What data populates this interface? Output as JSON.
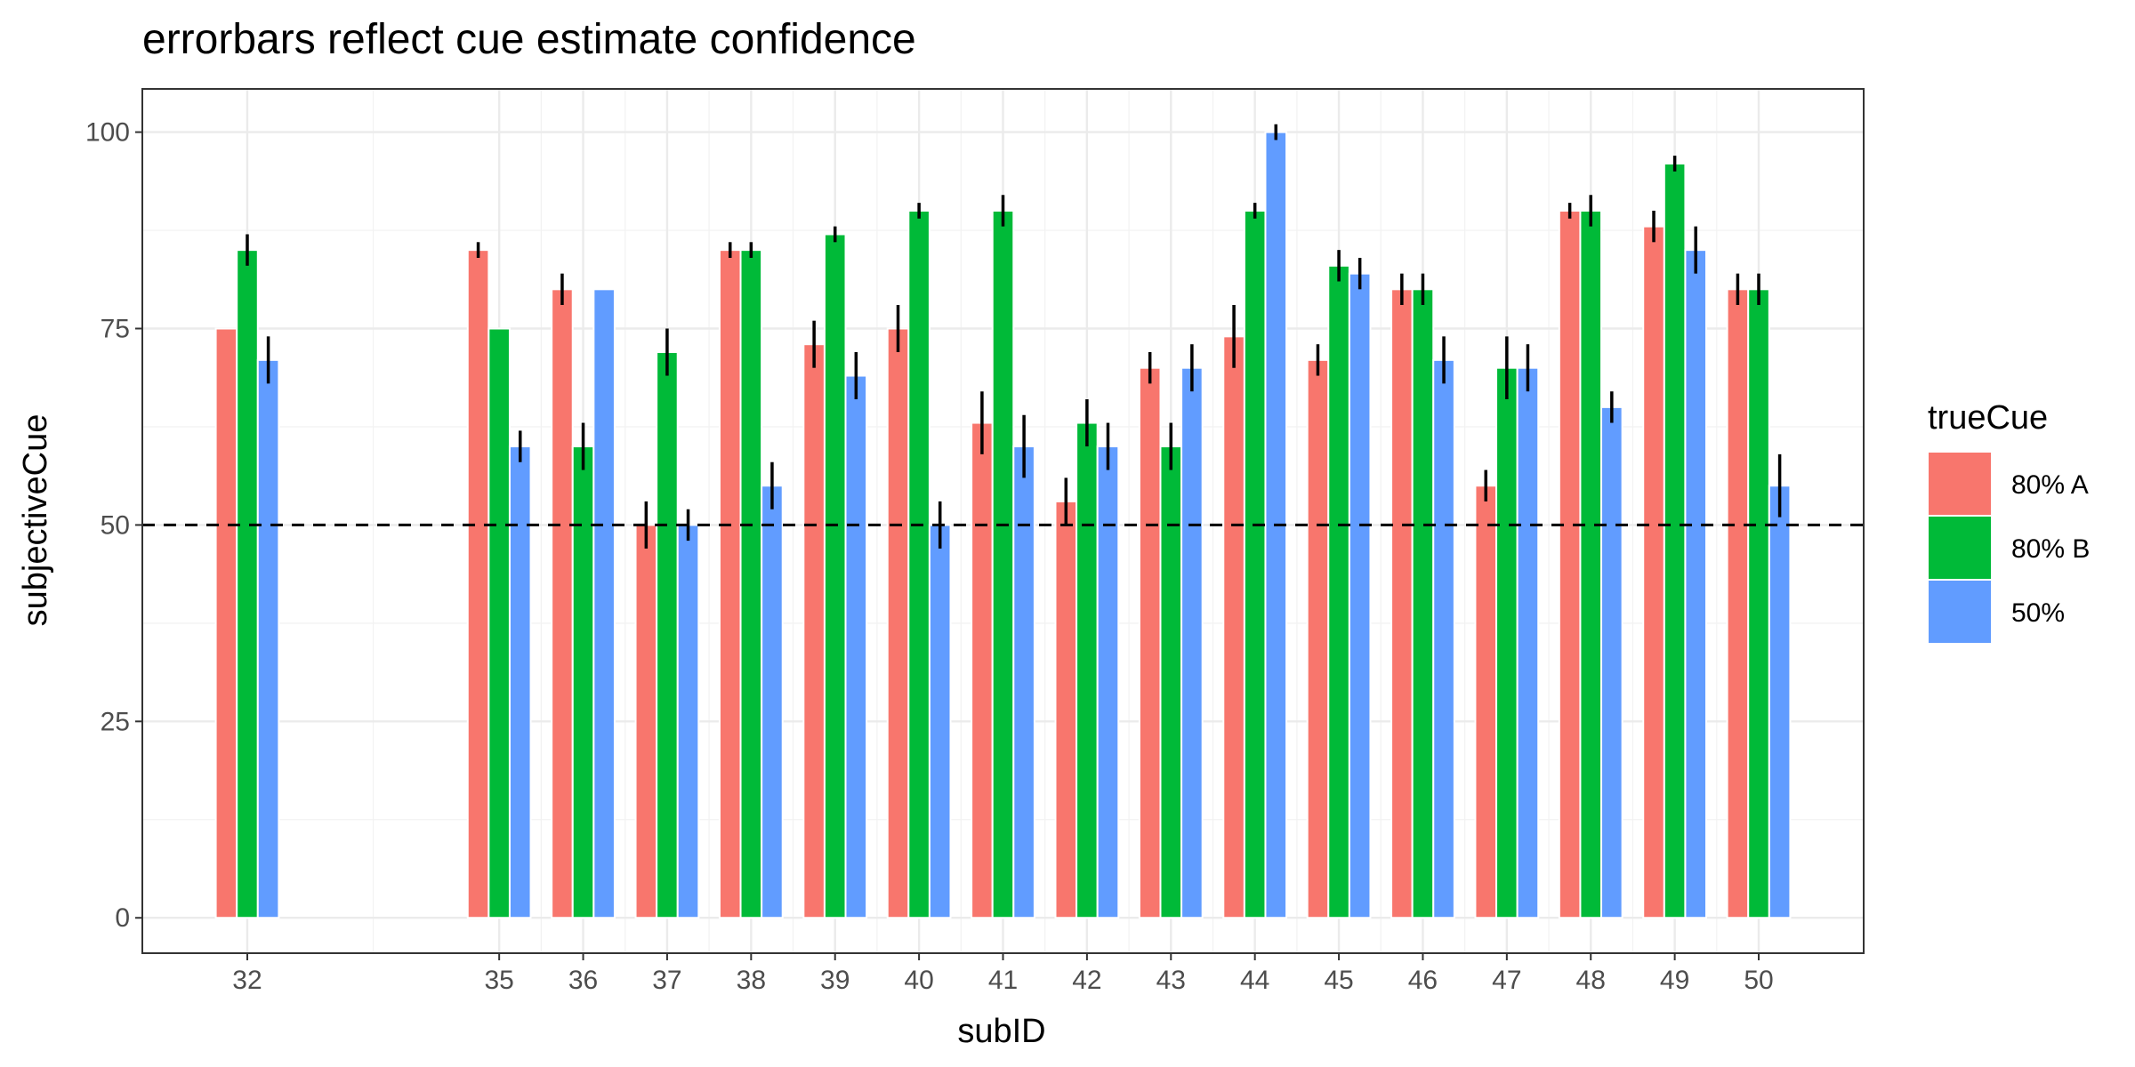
{
  "chart_data": {
    "type": "bar",
    "title": "errorbars reflect cue estimate confidence",
    "xlabel": "subID",
    "ylabel": "subjectiveCue",
    "categories": [
      "32",
      "35",
      "36",
      "37",
      "38",
      "39",
      "40",
      "41",
      "42",
      "43",
      "44",
      "45",
      "46",
      "47",
      "48",
      "49",
      "50"
    ],
    "x_positions": [
      32,
      35,
      36,
      37,
      38,
      39,
      40,
      41,
      42,
      43,
      44,
      45,
      46,
      47,
      48,
      49,
      50
    ],
    "xlim": [
      30.75,
      51.25
    ],
    "ylim": [
      -4.5,
      105.5
    ],
    "yticks": [
      0,
      25,
      50,
      75,
      100
    ],
    "reference_line": {
      "y": 50,
      "style": "dashed"
    },
    "grid": true,
    "legend": {
      "title": "trueCue",
      "placement": "right"
    },
    "series": [
      {
        "name": "80% A",
        "color": "#F8766D",
        "values": [
          75,
          85,
          80,
          50,
          85,
          73,
          75,
          63,
          53,
          70,
          74,
          71,
          80,
          55,
          90,
          88,
          80
        ],
        "err_low": [
          null,
          84,
          78,
          47,
          84,
          70,
          72,
          59,
          50,
          68,
          70,
          69,
          78,
          53,
          89,
          86,
          78
        ],
        "err_high": [
          null,
          86,
          82,
          53,
          86,
          76,
          78,
          67,
          56,
          72,
          78,
          73,
          82,
          57,
          91,
          90,
          82
        ]
      },
      {
        "name": "80% B",
        "color": "#00BA38",
        "values": [
          85,
          75,
          60,
          72,
          85,
          87,
          90,
          90,
          63,
          60,
          90,
          83,
          80,
          70,
          90,
          96,
          80
        ],
        "err_low": [
          83,
          null,
          57,
          69,
          84,
          86,
          89,
          88,
          60,
          57,
          89,
          81,
          78,
          66,
          88,
          95,
          78
        ],
        "err_high": [
          87,
          null,
          63,
          75,
          86,
          88,
          91,
          92,
          66,
          63,
          91,
          85,
          82,
          74,
          92,
          97,
          82
        ]
      },
      {
        "name": "50%",
        "color": "#619CFF",
        "values": [
          71,
          60,
          80,
          50,
          55,
          69,
          50,
          60,
          60,
          70,
          100,
          82,
          71,
          70,
          65,
          85,
          55
        ],
        "err_low": [
          68,
          58,
          null,
          48,
          52,
          66,
          47,
          56,
          57,
          67,
          99,
          80,
          68,
          67,
          63,
          82,
          51
        ],
        "err_high": [
          74,
          62,
          null,
          52,
          58,
          72,
          53,
          64,
          63,
          73,
          101,
          84,
          74,
          73,
          67,
          88,
          59
        ]
      }
    ]
  }
}
